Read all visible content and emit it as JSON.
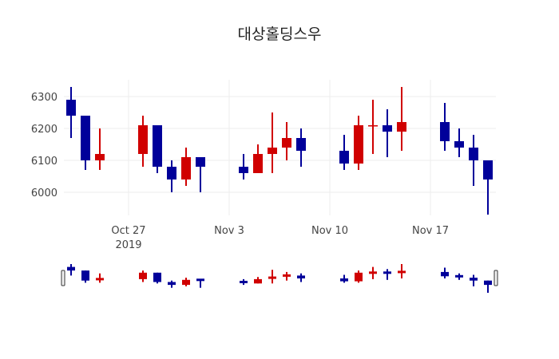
{
  "chart_data": {
    "type": "candlestick",
    "title": "대상홀딩스우",
    "xlabel": "",
    "ylabel": "",
    "ylim": [
      5915,
      6345
    ],
    "y_ticks": [
      6000,
      6100,
      6200,
      6300
    ],
    "x_ticks": [
      {
        "date": "2019-10-27",
        "label": "Oct 27",
        "sublabel": "2019"
      },
      {
        "date": "2019-11-03",
        "label": "Nov 3",
        "sublabel": ""
      },
      {
        "date": "2019-11-10",
        "label": "Nov 10",
        "sublabel": ""
      },
      {
        "date": "2019-11-17",
        "label": "Nov 17",
        "sublabel": ""
      }
    ],
    "grid": true,
    "increasing_color": "#d00000",
    "decreasing_color": "#00009a",
    "rangeslider": true,
    "candles": [
      {
        "date": "2019-10-23",
        "open": 6290,
        "high": 6330,
        "low": 6170,
        "close": 6240
      },
      {
        "date": "2019-10-24",
        "open": 6240,
        "high": 6240,
        "low": 6070,
        "close": 6100
      },
      {
        "date": "2019-10-25",
        "open": 6100,
        "high": 6200,
        "low": 6070,
        "close": 6120
      },
      {
        "date": "2019-10-28",
        "open": 6120,
        "high": 6240,
        "low": 6080,
        "close": 6210
      },
      {
        "date": "2019-10-29",
        "open": 6210,
        "high": 6210,
        "low": 6060,
        "close": 6080
      },
      {
        "date": "2019-10-30",
        "open": 6080,
        "high": 6100,
        "low": 6000,
        "close": 6040
      },
      {
        "date": "2019-10-31",
        "open": 6040,
        "high": 6140,
        "low": 6020,
        "close": 6110
      },
      {
        "date": "2019-11-01",
        "open": 6110,
        "high": 6110,
        "low": 6000,
        "close": 6080
      },
      {
        "date": "2019-11-04",
        "open": 6080,
        "high": 6120,
        "low": 6040,
        "close": 6060
      },
      {
        "date": "2019-11-05",
        "open": 6060,
        "high": 6150,
        "low": 6060,
        "close": 6120
      },
      {
        "date": "2019-11-06",
        "open": 6120,
        "high": 6250,
        "low": 6060,
        "close": 6140
      },
      {
        "date": "2019-11-07",
        "open": 6140,
        "high": 6220,
        "low": 6100,
        "close": 6170
      },
      {
        "date": "2019-11-08",
        "open": 6170,
        "high": 6200,
        "low": 6080,
        "close": 6130
      },
      {
        "date": "2019-11-11",
        "open": 6130,
        "high": 6180,
        "low": 6070,
        "close": 6090
      },
      {
        "date": "2019-11-12",
        "open": 6090,
        "high": 6240,
        "low": 6070,
        "close": 6210
      },
      {
        "date": "2019-11-13",
        "open": 6210,
        "high": 6290,
        "low": 6120,
        "close": 6210
      },
      {
        "date": "2019-11-14",
        "open": 6210,
        "high": 6260,
        "low": 6110,
        "close": 6190
      },
      {
        "date": "2019-11-15",
        "open": 6190,
        "high": 6330,
        "low": 6130,
        "close": 6220
      },
      {
        "date": "2019-11-18",
        "open": 6220,
        "high": 6280,
        "low": 6130,
        "close": 6160
      },
      {
        "date": "2019-11-19",
        "open": 6160,
        "high": 6200,
        "low": 6110,
        "close": 6140
      },
      {
        "date": "2019-11-20",
        "open": 6140,
        "high": 6180,
        "low": 6020,
        "close": 6100
      },
      {
        "date": "2019-11-21",
        "open": 6100,
        "high": 6100,
        "low": 5930,
        "close": 6040
      }
    ]
  }
}
